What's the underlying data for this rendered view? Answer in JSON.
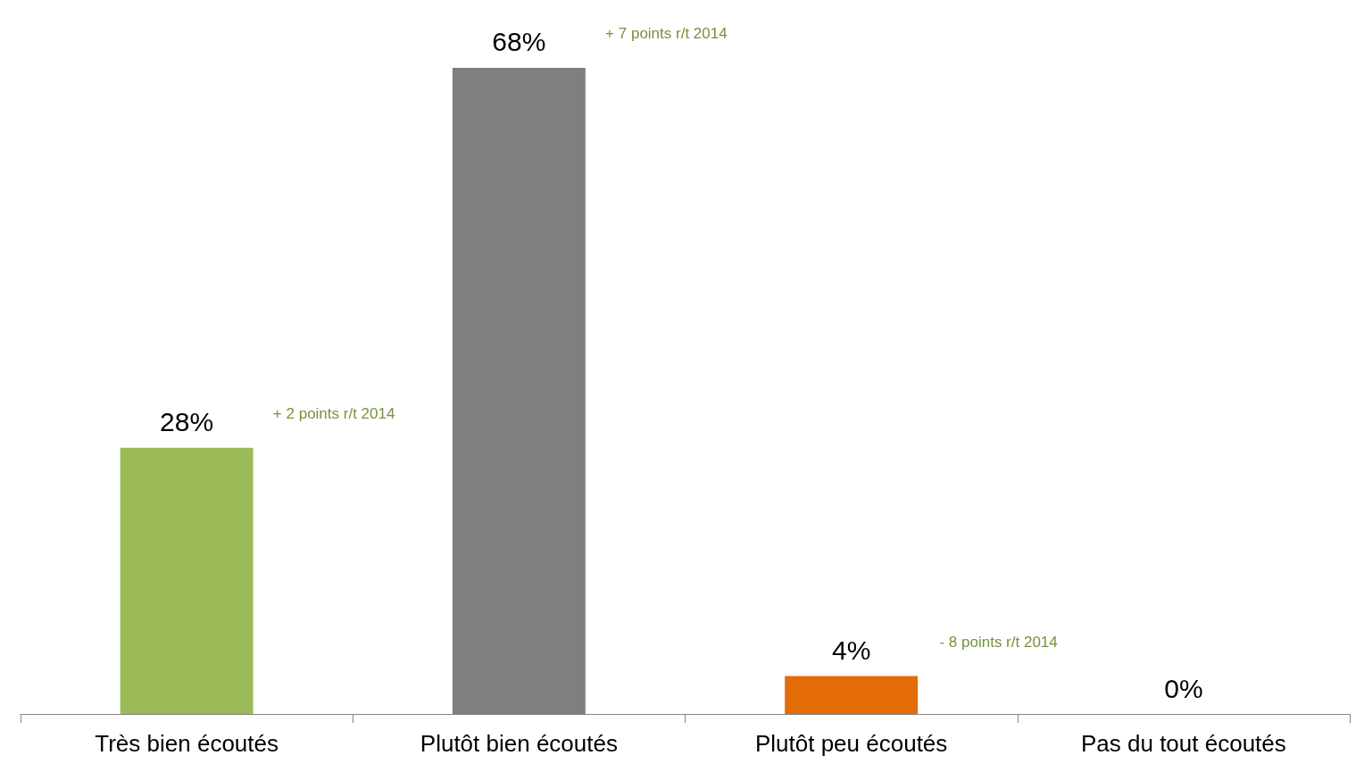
{
  "chart_data": {
    "type": "bar",
    "categories": [
      "Très bien écoutés",
      "Plutôt bien écoutés",
      "Plutôt peu écoutés",
      "Pas du tout écoutés"
    ],
    "values": [
      28,
      68,
      4,
      0
    ],
    "colors": [
      "#9bbb59",
      "#7f7f7f",
      "#e36c09",
      "#4f81bd"
    ],
    "value_labels": [
      "28%",
      "68%",
      "4%",
      "0%"
    ],
    "annotations": [
      "+ 2 points r/t 2014",
      "+ 7 points r/t 2014",
      "- 8 points r/t 2014"
    ]
  }
}
